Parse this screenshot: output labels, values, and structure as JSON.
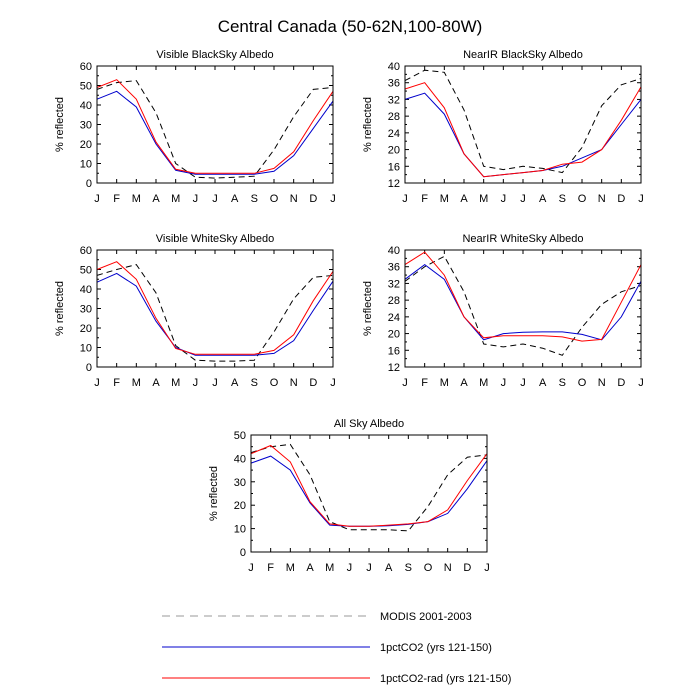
{
  "figure_title": "Central Canada (50-62N,100-80W)",
  "series_styles": [
    {
      "color": "#000000",
      "dash": "6,4"
    },
    {
      "color": "#0000cc",
      "dash": ""
    },
    {
      "color": "#ff0000",
      "dash": ""
    }
  ],
  "legend": [
    {
      "label": "MODIS 2001-2003",
      "color": "#9a9a9a",
      "dash": "8,6"
    },
    {
      "label": "1pctCO2 (yrs 121-150)",
      "color": "#0000cc",
      "dash": ""
    },
    {
      "label": "1pctCO2-rad (yrs 121-150)",
      "color": "#ff0000",
      "dash": ""
    }
  ],
  "chart_data": [
    {
      "type": "line",
      "title": "Visible BlackSky Albedo",
      "ylabel": "% reflected",
      "categories": [
        "J",
        "F",
        "M",
        "A",
        "M",
        "J",
        "J",
        "A",
        "S",
        "O",
        "N",
        "D",
        "J"
      ],
      "ylim": [
        0,
        60
      ],
      "yticks": [
        0,
        10,
        20,
        30,
        40,
        50,
        60
      ],
      "series": [
        {
          "name": "MODIS 2001-2003",
          "values": [
            48,
            51.5,
            52.5,
            36,
            10,
            3,
            2.5,
            3,
            3.5,
            17,
            34,
            48,
            49
          ]
        },
        {
          "name": "1pctCO2 (yrs 121-150)",
          "values": [
            43,
            47,
            39,
            20,
            6.5,
            4.5,
            4.5,
            4.5,
            4.5,
            6,
            14,
            28,
            42
          ]
        },
        {
          "name": "1pctCO2-rad (yrs 121-150)",
          "values": [
            49,
            53,
            43,
            21,
            7,
            5,
            5,
            5,
            5,
            7.5,
            16,
            32,
            47
          ]
        }
      ]
    },
    {
      "type": "line",
      "title": "NearIR BlackSky Albedo",
      "ylabel": "% reflected",
      "categories": [
        "J",
        "F",
        "M",
        "A",
        "M",
        "J",
        "J",
        "A",
        "S",
        "O",
        "N",
        "D",
        "J"
      ],
      "ylim": [
        12,
        40
      ],
      "yticks": [
        12,
        16,
        20,
        24,
        28,
        32,
        36,
        40
      ],
      "series": [
        {
          "name": "MODIS 2001-2003",
          "values": [
            36.5,
            39,
            38.5,
            29.5,
            16,
            15.2,
            16,
            15.5,
            14.5,
            20.5,
            30.5,
            35.5,
            37
          ]
        },
        {
          "name": "1pctCO2 (yrs 121-150)",
          "values": [
            32,
            33.5,
            28.5,
            19,
            13.5,
            14,
            14.5,
            15,
            16,
            18,
            20,
            26,
            32
          ]
        },
        {
          "name": "1pctCO2-rad (yrs 121-150)",
          "values": [
            34.5,
            36,
            30,
            19,
            13.5,
            14,
            14.5,
            15,
            16.5,
            17,
            20,
            27,
            35
          ]
        }
      ]
    },
    {
      "type": "line",
      "title": "Visible WhiteSky Albedo",
      "ylabel": "% reflected",
      "categories": [
        "J",
        "F",
        "M",
        "A",
        "M",
        "J",
        "J",
        "A",
        "S",
        "O",
        "N",
        "D",
        "J"
      ],
      "ylim": [
        0,
        60
      ],
      "yticks": [
        0,
        10,
        20,
        30,
        40,
        50,
        60
      ],
      "series": [
        {
          "name": "MODIS 2001-2003",
          "values": [
            47,
            50,
            52.5,
            38,
            11,
            3.5,
            3,
            3,
            3.5,
            18,
            35,
            46,
            47
          ]
        },
        {
          "name": "1pctCO2 (yrs 121-150)",
          "values": [
            43.5,
            48,
            41.5,
            23.5,
            10,
            6,
            6,
            6,
            6,
            7,
            13.5,
            29,
            44
          ]
        },
        {
          "name": "1pctCO2-rad (yrs 121-150)",
          "values": [
            50,
            54,
            45,
            25,
            9.5,
            6.5,
            6.5,
            6.5,
            6.5,
            8.5,
            16.5,
            34,
            49
          ]
        }
      ]
    },
    {
      "type": "line",
      "title": "NearIR WhiteSky Albedo",
      "ylabel": "% reflected",
      "categories": [
        "J",
        "F",
        "M",
        "A",
        "M",
        "J",
        "J",
        "A",
        "S",
        "O",
        "N",
        "D",
        "J"
      ],
      "ylim": [
        12,
        40
      ],
      "yticks": [
        12,
        16,
        20,
        24,
        28,
        32,
        36,
        40
      ],
      "series": [
        {
          "name": "MODIS 2001-2003",
          "values": [
            32.5,
            36,
            38.5,
            30,
            17.5,
            16.8,
            17.5,
            16.5,
            14.8,
            21.5,
            27,
            30,
            31.5
          ]
        },
        {
          "name": "1pctCO2 (yrs 121-150)",
          "values": [
            33,
            36.5,
            33,
            24,
            18.5,
            20,
            20.3,
            20.4,
            20.4,
            19.8,
            18.5,
            24,
            32.5
          ]
        },
        {
          "name": "1pctCO2-rad (yrs 121-150)",
          "values": [
            36.5,
            39.5,
            34,
            24,
            19,
            19.5,
            19.5,
            19.5,
            19.2,
            18.2,
            18.6,
            27.5,
            36.5
          ]
        }
      ]
    },
    {
      "type": "line",
      "title": "All Sky Albedo",
      "ylabel": "% reflected",
      "categories": [
        "J",
        "F",
        "M",
        "A",
        "M",
        "J",
        "J",
        "A",
        "S",
        "O",
        "N",
        "D",
        "J"
      ],
      "ylim": [
        0,
        50
      ],
      "yticks": [
        0,
        10,
        20,
        30,
        40,
        50
      ],
      "series": [
        {
          "name": "MODIS 2001-2003",
          "values": [
            42.5,
            45,
            46,
            33,
            13,
            9.5,
            9.5,
            9.5,
            9,
            19.5,
            33,
            40.5,
            41.5
          ]
        },
        {
          "name": "1pctCO2 (yrs 121-150)",
          "values": [
            38,
            41,
            35,
            21,
            11.5,
            11,
            11,
            11.2,
            11.8,
            13,
            16.5,
            27,
            39
          ]
        },
        {
          "name": "1pctCO2-rad (yrs 121-150)",
          "values": [
            42,
            45.5,
            38.5,
            21.5,
            12,
            11,
            11,
            11.5,
            12,
            13,
            18,
            30.5,
            42
          ]
        }
      ]
    }
  ]
}
